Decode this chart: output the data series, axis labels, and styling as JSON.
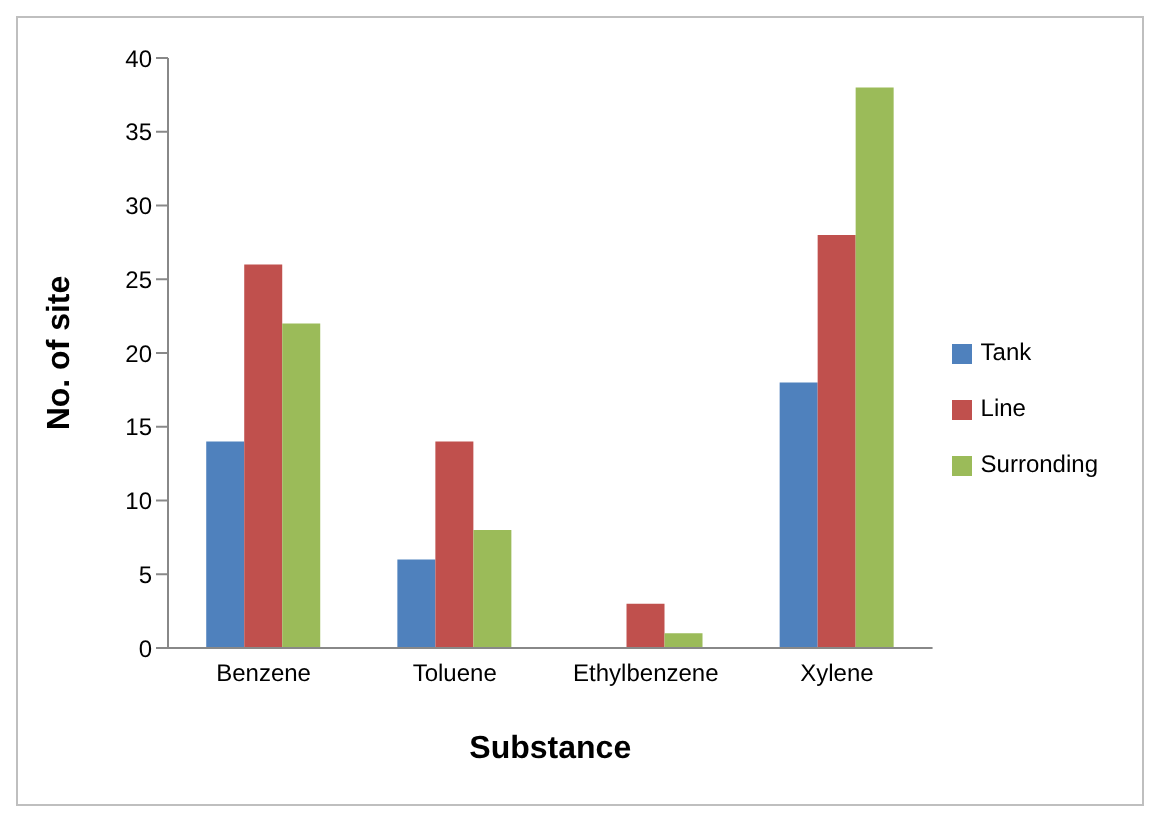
{
  "chart_data": {
    "type": "bar",
    "xlabel": "Substance",
    "ylabel": "No. of site",
    "categories": [
      "Benzene",
      "Toluene",
      "Ethylbenzene",
      "Xylene"
    ],
    "series": [
      {
        "name": "Tank",
        "color": "#4f81bd",
        "values": [
          14,
          6,
          0,
          18
        ]
      },
      {
        "name": "Line",
        "color": "#c0504d",
        "values": [
          26,
          14,
          3,
          28
        ]
      },
      {
        "name": "Surronding",
        "color": "#9bbb59",
        "values": [
          22,
          8,
          1,
          38
        ]
      }
    ],
    "ylim": [
      0,
      40
    ],
    "yticks": [
      0,
      5,
      10,
      15,
      20,
      25,
      30,
      35,
      40
    ],
    "grid": false,
    "legend": "right"
  }
}
